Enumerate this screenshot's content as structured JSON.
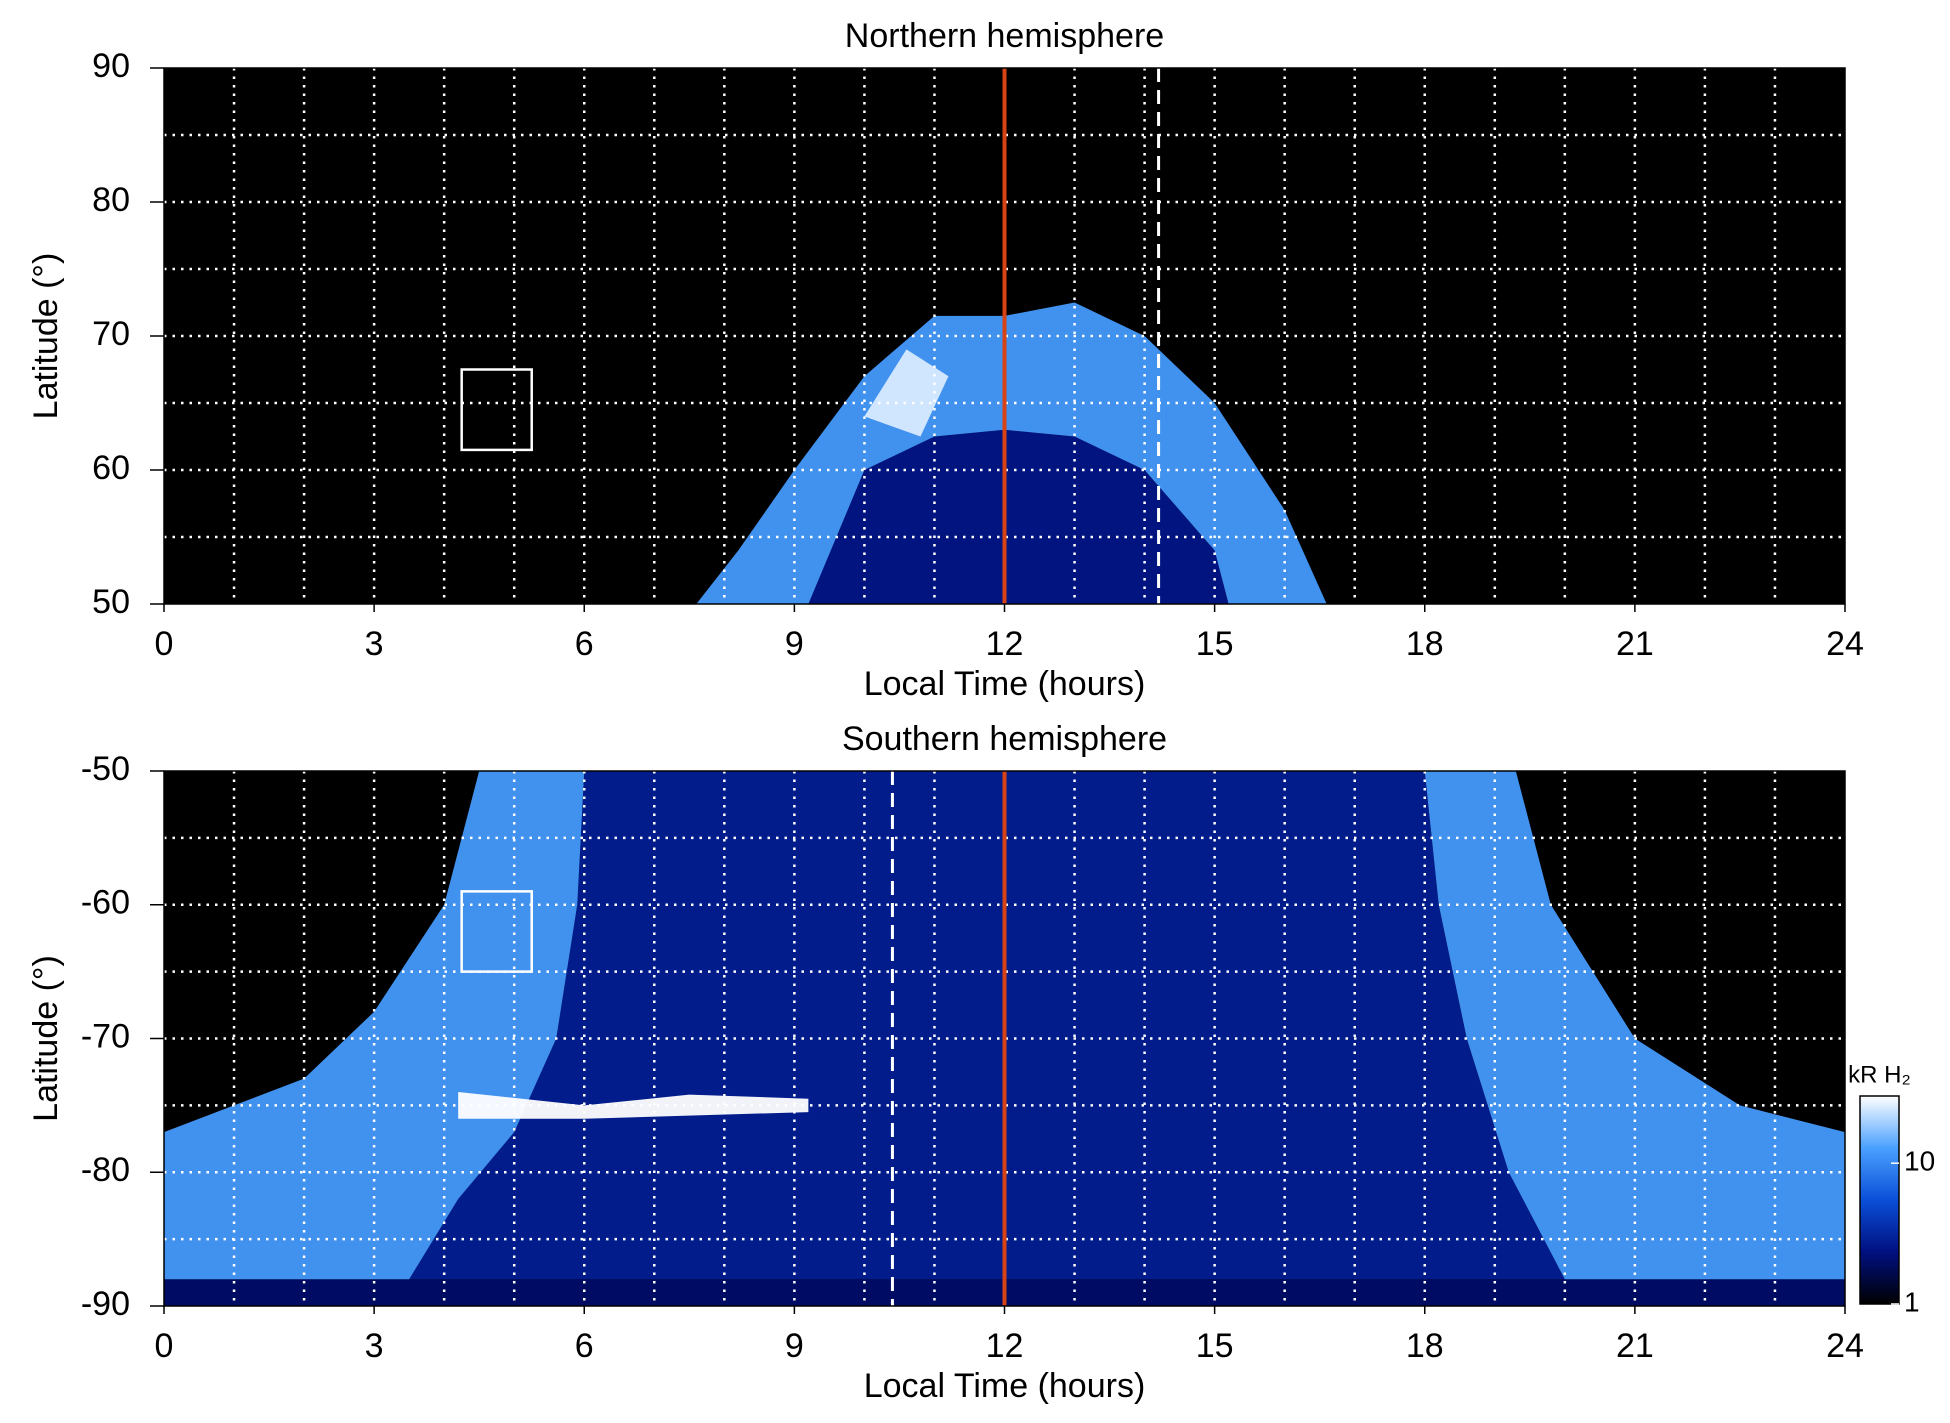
{
  "chart_data": [
    {
      "type": "heatmap",
      "title": "Northern hemisphere",
      "xlabel": "Local Time (hours)",
      "ylabel": "Latitude (°)",
      "xlim": [
        0,
        24
      ],
      "xticks": [
        0,
        3,
        6,
        9,
        12,
        15,
        18,
        21,
        24
      ],
      "ylim": [
        50,
        90
      ],
      "yticks": [
        50,
        60,
        70,
        80,
        90
      ],
      "xgrid": [
        1,
        2,
        3,
        4,
        5,
        6,
        7,
        8,
        9,
        10,
        11,
        12,
        13,
        14,
        15,
        16,
        17,
        18,
        19,
        20,
        21,
        22,
        23
      ],
      "ygrid": [
        55,
        60,
        65,
        70,
        75,
        80,
        85
      ],
      "regions": [
        {
          "x": [
            9.2,
            10,
            11,
            12,
            13,
            14,
            15,
            15.2
          ],
          "y": [
            50,
            60,
            62.5,
            63,
            62.5,
            60,
            54,
            50
          ],
          "value": 2.5
        },
        {
          "x": [
            7.6,
            8.2,
            9,
            10,
            11,
            12,
            13,
            14,
            15,
            16,
            16.6,
            15.2,
            15,
            14,
            13,
            12,
            11,
            10,
            9.2
          ],
          "y": [
            50,
            54,
            60,
            67,
            71.5,
            71.5,
            72.5,
            70,
            65,
            57,
            50,
            50,
            54,
            60,
            62.5,
            63,
            62.5,
            60,
            50
          ],
          "value": 12
        },
        {
          "x": [
            10,
            10.8,
            11.2,
            10.6
          ],
          "y": [
            64,
            62.5,
            67,
            69
          ],
          "value": 25
        }
      ],
      "vlines": [
        {
          "x": 12,
          "color": "#d84315",
          "style": "solid"
        },
        {
          "x": 14.2,
          "color": "#ffffff",
          "style": "dashed"
        }
      ],
      "box": {
        "x": [
          4.25,
          5.25
        ],
        "y": [
          61.5,
          67.5
        ]
      }
    },
    {
      "type": "heatmap",
      "title": "Southern hemisphere",
      "xlabel": "Local Time (hours)",
      "ylabel": "Latitude (°)",
      "xlim": [
        0,
        24
      ],
      "xticks": [
        0,
        3,
        6,
        9,
        12,
        15,
        18,
        21,
        24
      ],
      "ylim": [
        -90,
        -50
      ],
      "yticks": [
        -90,
        -80,
        -70,
        -60,
        -50
      ],
      "xgrid": [
        1,
        2,
        3,
        4,
        5,
        6,
        7,
        8,
        9,
        10,
        11,
        12,
        13,
        14,
        15,
        16,
        17,
        18,
        19,
        20,
        21,
        22,
        23
      ],
      "ygrid": [
        -85,
        -80,
        -75,
        -70,
        -65,
        -60,
        -55
      ],
      "regions": [
        {
          "x": [
            0,
            24,
            24,
            0
          ],
          "y": [
            -90,
            -90,
            -88,
            -88
          ],
          "value": 2
        },
        {
          "x": [
            6,
            18,
            18.2,
            18.6,
            19.2,
            20,
            3.5,
            4.2,
            5,
            5.6,
            5.9
          ],
          "y": [
            -50,
            -50,
            -60,
            -70,
            -80,
            -88,
            -88,
            -82,
            -77,
            -70,
            -60
          ],
          "value": 2.8
        },
        {
          "x": [
            4.5,
            4,
            3,
            2,
            1,
            0,
            0,
            3.5,
            4.2,
            5,
            5.6,
            5.9,
            6
          ],
          "y": [
            -50,
            -60,
            -68,
            -73,
            -75,
            -77,
            -88,
            -88,
            -82,
            -77,
            -70,
            -60,
            -50
          ],
          "value": 12
        },
        {
          "x": [
            19.3,
            19.8,
            21,
            22.5,
            24,
            24,
            20,
            19.2,
            18.6,
            18.2,
            18
          ],
          "y": [
            -50,
            -60,
            -70,
            -75,
            -77,
            -88,
            -88,
            -80,
            -70,
            -60,
            -50
          ],
          "value": 12
        },
        {
          "x": [
            4.2,
            6,
            7.5,
            9.2,
            9.2,
            6,
            4.2
          ],
          "y": [
            -74,
            -75,
            -74.2,
            -74.5,
            -75.5,
            -76,
            -76
          ],
          "value": 30
        }
      ],
      "vlines": [
        {
          "x": 12,
          "color": "#d84315",
          "style": "solid"
        },
        {
          "x": 10.4,
          "color": "#ffffff",
          "style": "dashed"
        }
      ],
      "box": {
        "x": [
          4.25,
          5.25
        ],
        "y": [
          -59,
          -65
        ]
      },
      "colorbar": {
        "label": "kR H₂",
        "lim": [
          1,
          30
        ],
        "ticks": [
          1,
          10
        ],
        "scale": "log",
        "colors": [
          "#000000",
          "#001080",
          "#0a4fd8",
          "#4aa0ff",
          "#ffffff"
        ]
      }
    }
  ]
}
